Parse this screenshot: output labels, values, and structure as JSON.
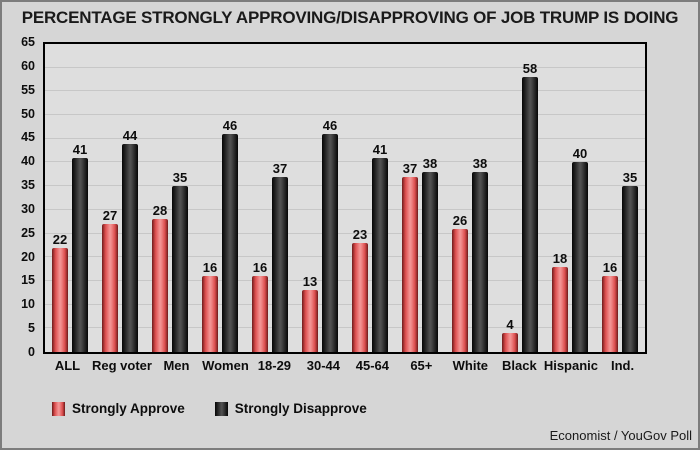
{
  "chart_data": {
    "type": "bar",
    "title": "PERCENTAGE STRONGLY APPROVING/DISAPPROVING OF JOB TRUMP IS DOING",
    "categories": [
      "ALL",
      "Reg voter",
      "Men",
      "Women",
      "18-29",
      "30-44",
      "45-64",
      "65+",
      "White",
      "Black",
      "Hispanic",
      "Ind."
    ],
    "series": [
      {
        "name": "Strongly Approve",
        "key": "approve",
        "values": [
          22,
          27,
          28,
          16,
          16,
          13,
          23,
          37,
          26,
          4,
          18,
          16
        ],
        "colors": {
          "edge": "#6e1a1a",
          "main": "#dd4f4f",
          "highlight": "#f29292"
        }
      },
      {
        "name": "Strongly Disapprove",
        "key": "disapprove",
        "values": [
          41,
          44,
          35,
          46,
          37,
          46,
          41,
          38,
          38,
          58,
          40,
          35
        ],
        "colors": {
          "edge": "#050505",
          "main": "#262626",
          "highlight": "#4f4f4f"
        }
      }
    ],
    "xlabel": "",
    "ylabel": "",
    "ylim": [
      0,
      65
    ],
    "ytick_step": 5,
    "grid": true,
    "legend_position": "bottom-left",
    "plot_background": "#dedede",
    "page_background": "#d6d6d6",
    "gridline_color": "#c7c7c7"
  },
  "footer": {
    "source": "Economist / YouGov Poll"
  }
}
